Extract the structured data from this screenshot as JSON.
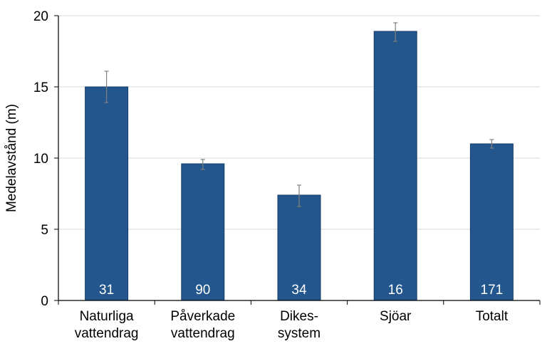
{
  "chart_data": {
    "type": "bar",
    "categories": [
      [
        "Naturliga",
        "vattendrag"
      ],
      [
        "Påverkade",
        "vattendrag"
      ],
      [
        "Dikes-",
        "system"
      ],
      [
        "Sjöar"
      ],
      [
        "Totalt"
      ]
    ],
    "values": [
      15.0,
      9.6,
      7.4,
      18.9,
      11.0
    ],
    "error_low": [
      13.9,
      9.2,
      6.6,
      18.2,
      10.7
    ],
    "error_high": [
      16.1,
      9.9,
      8.1,
      19.5,
      11.3
    ],
    "bar_labels": [
      "31",
      "90",
      "34",
      "16",
      "171"
    ],
    "title": "",
    "xlabel": "",
    "ylabel": "Medelavstånd (m)",
    "ylim": [
      0,
      20
    ],
    "yticks": [
      0,
      5,
      10,
      15,
      20
    ],
    "grid": true,
    "colors": {
      "bar": "#23568C",
      "bar_edge": "#1a3f68",
      "error": "#7f7f7f",
      "grid": "#d9d9d9",
      "axis": "#000000"
    }
  }
}
